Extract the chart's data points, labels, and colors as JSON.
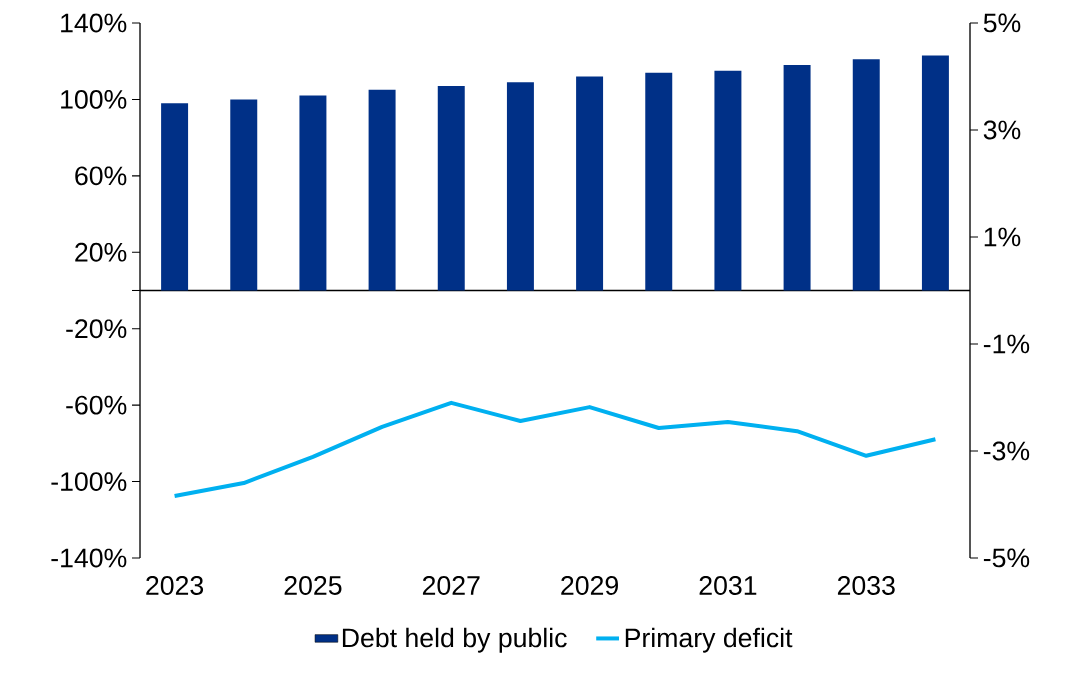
{
  "chart_data": {
    "type": "bar",
    "categories": [
      "2023",
      null,
      "2025",
      null,
      "2027",
      null,
      "2029",
      null,
      "2031",
      null,
      "2033",
      null
    ],
    "series": [
      {
        "name": "Debt held by public",
        "color": "#003087",
        "values": [
          98,
          100,
          102,
          105,
          107,
          109,
          112,
          114,
          115,
          118,
          121,
          123
        ]
      },
      {
        "name": "Primary deficit",
        "type": "line",
        "color": "#00b0f0",
        "axis": "y2",
        "values": [
          -3.84,
          -3.6,
          -3.11,
          -2.55,
          -2.1,
          -2.44,
          -2.18,
          -2.57,
          -2.46,
          -2.63,
          -3.09,
          -2.78
        ]
      }
    ],
    "ylim": [
      -140,
      140
    ],
    "yticks": [
      {
        "value": -140,
        "label": "-140%"
      },
      {
        "value": -100,
        "label": "-100%"
      },
      {
        "value": -60,
        "label": "-60%"
      },
      {
        "value": -20,
        "label": "-20%"
      },
      {
        "value": 20,
        "label": "20%"
      },
      {
        "value": 60,
        "label": "60%"
      },
      {
        "value": 100,
        "label": "100%"
      },
      {
        "value": 140,
        "label": "140%"
      }
    ],
    "y2lim": [
      -5,
      5
    ],
    "y2ticks": [
      {
        "value": -5,
        "label": "-5%"
      },
      {
        "value": -3,
        "label": "-3%"
      },
      {
        "value": -1,
        "label": "-1%"
      },
      {
        "value": 1,
        "label": "1%"
      },
      {
        "value": 3,
        "label": "3%"
      },
      {
        "value": 5,
        "label": "5%"
      }
    ],
    "legend": "bottom"
  }
}
